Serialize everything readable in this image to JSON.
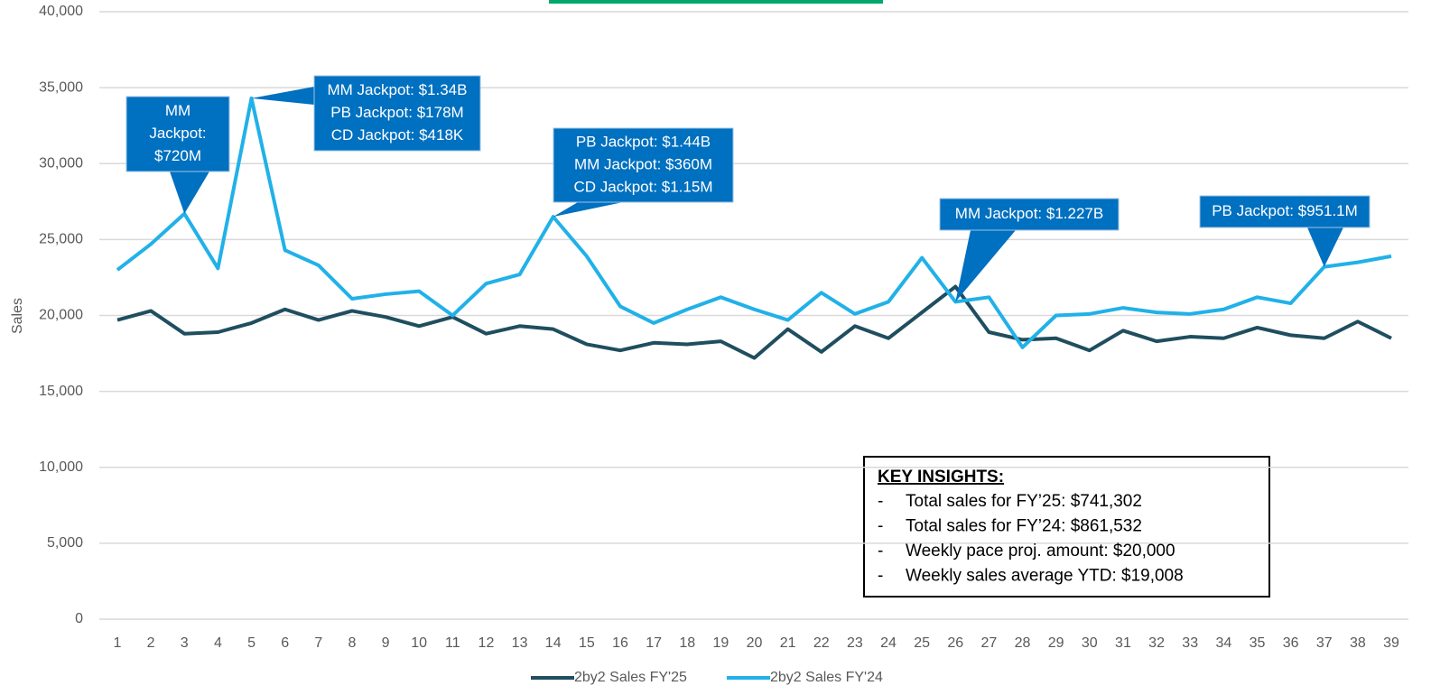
{
  "chart_data": {
    "type": "line",
    "y_label": "Sales",
    "categories": [
      1,
      2,
      3,
      4,
      5,
      6,
      7,
      8,
      9,
      10,
      11,
      12,
      13,
      14,
      15,
      16,
      17,
      18,
      19,
      20,
      21,
      22,
      23,
      24,
      25,
      26,
      27,
      28,
      29,
      30,
      31,
      32,
      33,
      34,
      35,
      36,
      37,
      38,
      39
    ],
    "series": [
      {
        "name": "2by2 Sales FY'25",
        "color": "#1f4e5f",
        "values": [
          19700,
          20300,
          18800,
          18900,
          19500,
          20400,
          19700,
          20300,
          19900,
          19300,
          19900,
          18800,
          19300,
          19100,
          18100,
          17700,
          18200,
          18100,
          18300,
          17200,
          19100,
          17600,
          19300,
          18500,
          20200,
          21900,
          18900,
          18400,
          18500,
          17700,
          19000,
          18300,
          18600,
          18500,
          19200,
          18700,
          18500,
          19600,
          18500
        ]
      },
      {
        "name": "2by2 Sales FY'24",
        "color": "#21b1e8",
        "values": [
          23000,
          24700,
          26700,
          23100,
          34300,
          24300,
          23300,
          21100,
          21400,
          21600,
          20000,
          22100,
          22700,
          26500,
          23900,
          20600,
          19500,
          20400,
          21200,
          20400,
          19700,
          21500,
          20100,
          20900,
          23800,
          20900,
          21200,
          17900,
          20000,
          20100,
          20500,
          20200,
          20100,
          20400,
          21200,
          20800,
          23200,
          23500,
          23900
        ]
      }
    ],
    "ylim": [
      0,
      40000
    ],
    "yticks": [
      0,
      {
        "value": 5000,
        "label": "5,000"
      },
      {
        "value": 10000,
        "label": "10,000"
      },
      {
        "value": 15000,
        "label": "15,000"
      },
      {
        "value": 20000,
        "label": "20,000"
      },
      {
        "value": 25000,
        "label": "25,000"
      },
      {
        "value": 30000,
        "label": "30,000"
      },
      {
        "value": 35000,
        "label": "35,000"
      },
      {
        "value": 40000,
        "label": "40,000"
      }
    ],
    "grid": true,
    "legend": "bottom",
    "annotations": [
      {
        "lines": [
          "MM",
          "Jackpot:",
          "$720M"
        ]
      },
      {
        "lines": [
          "MM Jackpot: $1.34B",
          "PB Jackpot: $178M",
          "CD Jackpot: $418K"
        ]
      },
      {
        "lines": [
          "PB Jackpot: $1.44B",
          "MM Jackpot: $360M",
          "CD Jackpot: $1.15M"
        ]
      },
      {
        "lines": [
          "MM Jackpot: $1.227B"
        ]
      },
      {
        "lines": [
          "PB Jackpot: $951.1M"
        ]
      }
    ],
    "insights": {
      "title": "KEY INSIGHTS:",
      "bullet": "-",
      "items": [
        "Total sales for FY’25: $741,302",
        "Total sales for FY’24: $861,532",
        "Weekly pace proj. amount: $20,000",
        "Weekly sales average YTD: $19,008"
      ]
    }
  }
}
